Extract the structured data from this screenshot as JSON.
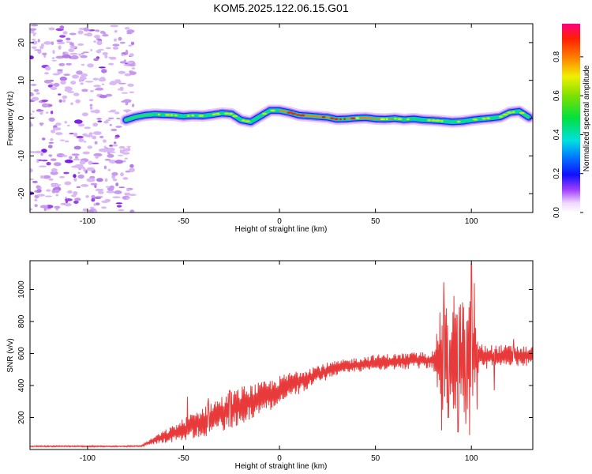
{
  "title": "KOM5.2025.122.06.15.G01",
  "chart_data": [
    {
      "type": "heatmap",
      "xlabel": "Height of straight line (km)",
      "ylabel": "Frequency (Hz)",
      "xlim": [
        -130,
        132
      ],
      "ylim": [
        -25,
        25
      ],
      "xticks": [
        -100,
        -50,
        0,
        50,
        100
      ],
      "yticks": [
        -20,
        -10,
        0,
        10,
        20
      ],
      "colorbar": {
        "label": "Normalized spectral amplitude",
        "range": [
          0,
          0.97
        ],
        "ticks": [
          0.0,
          0.2,
          0.4,
          0.6,
          0.8
        ]
      },
      "ridge": {
        "x": [
          -80,
          -75,
          -70,
          -65,
          -60,
          -55,
          -50,
          -45,
          -40,
          -35,
          -30,
          -25,
          -20,
          -15,
          -10,
          -5,
          0,
          5,
          10,
          15,
          20,
          25,
          30,
          35,
          40,
          45,
          50,
          55,
          60,
          65,
          70,
          75,
          80,
          85,
          90,
          95,
          100,
          105,
          110,
          115,
          120,
          125,
          130
        ],
        "frequency": [
          -0.5,
          0.3,
          0.8,
          1.0,
          0.9,
          0.8,
          0.5,
          0.7,
          0.6,
          0.9,
          1.3,
          1.1,
          -0.5,
          -1.0,
          0.5,
          2.0,
          2.0,
          1.5,
          0.8,
          0.6,
          0.4,
          0.2,
          -0.3,
          -0.2,
          0.0,
          0.1,
          -0.2,
          -0.3,
          -0.1,
          -0.4,
          -0.2,
          -0.5,
          -0.6,
          -0.8,
          -1.0,
          -0.9,
          -0.5,
          -0.2,
          0.0,
          0.3,
          1.5,
          1.8,
          0.2
        ]
      },
      "noise_region_x": [
        -130,
        -72
      ]
    },
    {
      "type": "line",
      "xlabel": "Height of straight line (km)",
      "ylabel": "SNR (v/v)",
      "xlim": [
        -130,
        132
      ],
      "ylim": [
        0,
        1180
      ],
      "xticks": [
        -100,
        -50,
        0,
        50,
        100
      ],
      "yticks": [
        200,
        400,
        600,
        800,
        1000
      ],
      "color": "#e83a3a",
      "trend": {
        "x": [
          -130,
          -80,
          -72,
          -65,
          -55,
          -45,
          -35,
          -25,
          -15,
          -5,
          5,
          15,
          25,
          30,
          40,
          50,
          60,
          70,
          80,
          90,
          100,
          110,
          120,
          132
        ],
        "y": [
          20,
          20,
          22,
          60,
          100,
          150,
          200,
          250,
          300,
          340,
          400,
          450,
          490,
          510,
          530,
          545,
          550,
          555,
          560,
          570,
          580,
          580,
          585,
          585
        ]
      },
      "noise_amplitude": {
        "x": [
          -130,
          -72,
          -65,
          -50,
          -35,
          -20,
          -10,
          10,
          30,
          80,
          84,
          100,
          104,
          132
        ],
        "y": [
          4,
          4,
          25,
          70,
          110,
          120,
          100,
          80,
          45,
          55,
          320,
          360,
          80,
          60
        ]
      },
      "spikes": [
        {
          "x": -48,
          "y": 330
        },
        {
          "x": -37,
          "y": 320
        },
        {
          "x": -26,
          "y": 370
        },
        {
          "x": -16,
          "y": 350
        },
        {
          "x": 84.5,
          "y": 120
        },
        {
          "x": 85.5,
          "y": 1045
        },
        {
          "x": 88,
          "y": 200
        },
        {
          "x": 91,
          "y": 960
        },
        {
          "x": 93,
          "y": 110
        },
        {
          "x": 95.5,
          "y": 920
        },
        {
          "x": 97,
          "y": 160
        },
        {
          "x": 99,
          "y": 90
        },
        {
          "x": 100,
          "y": 1160
        },
        {
          "x": 101.5,
          "y": 1040
        },
        {
          "x": 103,
          "y": 250
        },
        {
          "x": 112,
          "y": 370
        },
        {
          "x": 122,
          "y": 690
        }
      ]
    }
  ]
}
